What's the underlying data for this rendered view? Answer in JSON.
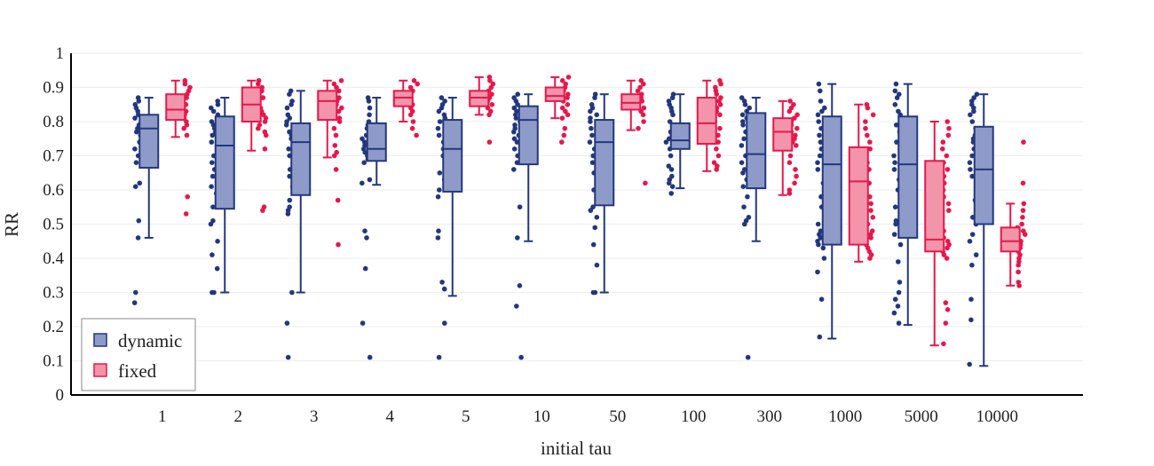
{
  "chart_data": {
    "type": "box",
    "title": "",
    "xlabel": "initial tau",
    "ylabel": "RR",
    "ylim": [
      0,
      1
    ],
    "yticks": [
      "0",
      "0.1",
      "0.2",
      "0.3",
      "0.4",
      "0.5",
      "0.6",
      "0.7",
      "0.8",
      "0.9",
      "1"
    ],
    "categories": [
      "1",
      "2",
      "3",
      "4",
      "5",
      "10",
      "50",
      "100",
      "300",
      "1000",
      "5000",
      "10000"
    ],
    "legend_position": "bottom-left",
    "series": [
      {
        "name": "dynamic",
        "color": "#23377f",
        "fill": "#8e9bc8",
        "boxes": [
          {
            "min": 0.46,
            "q1": 0.665,
            "median": 0.78,
            "q3": 0.82,
            "max": 0.87
          },
          {
            "min": 0.3,
            "q1": 0.545,
            "median": 0.73,
            "q3": 0.815,
            "max": 0.87
          },
          {
            "min": 0.3,
            "q1": 0.585,
            "median": 0.74,
            "q3": 0.795,
            "max": 0.89
          },
          {
            "min": 0.615,
            "q1": 0.685,
            "median": 0.72,
            "q3": 0.795,
            "max": 0.87
          },
          {
            "min": 0.29,
            "q1": 0.595,
            "median": 0.72,
            "q3": 0.805,
            "max": 0.87
          },
          {
            "min": 0.45,
            "q1": 0.675,
            "median": 0.805,
            "q3": 0.845,
            "max": 0.88
          },
          {
            "min": 0.3,
            "q1": 0.555,
            "median": 0.74,
            "q3": 0.805,
            "max": 0.88
          },
          {
            "min": 0.605,
            "q1": 0.72,
            "median": 0.745,
            "q3": 0.795,
            "max": 0.88
          },
          {
            "min": 0.45,
            "q1": 0.605,
            "median": 0.705,
            "q3": 0.825,
            "max": 0.87
          },
          {
            "min": 0.165,
            "q1": 0.44,
            "median": 0.675,
            "q3": 0.815,
            "max": 0.91
          },
          {
            "min": 0.205,
            "q1": 0.46,
            "median": 0.675,
            "q3": 0.815,
            "max": 0.91
          },
          {
            "min": 0.085,
            "q1": 0.5,
            "median": 0.66,
            "q3": 0.785,
            "max": 0.88
          }
        ],
        "points": [
          [
            0.87,
            0.86,
            0.85,
            0.84,
            0.83,
            0.82,
            0.81,
            0.8,
            0.79,
            0.78,
            0.77,
            0.76,
            0.74,
            0.72,
            0.7,
            0.68,
            0.62,
            0.61,
            0.51,
            0.46,
            0.3,
            0.27
          ],
          [
            0.86,
            0.85,
            0.84,
            0.83,
            0.82,
            0.8,
            0.79,
            0.78,
            0.77,
            0.76,
            0.74,
            0.72,
            0.7,
            0.68,
            0.66,
            0.64,
            0.61,
            0.59,
            0.55,
            0.51,
            0.5,
            0.45,
            0.41,
            0.37,
            0.3,
            0.3
          ],
          [
            0.89,
            0.88,
            0.86,
            0.85,
            0.84,
            0.82,
            0.81,
            0.8,
            0.79,
            0.77,
            0.76,
            0.75,
            0.74,
            0.72,
            0.7,
            0.66,
            0.64,
            0.61,
            0.57,
            0.55,
            0.54,
            0.53,
            0.3,
            0.21,
            0.11
          ],
          [
            0.87,
            0.86,
            0.84,
            0.82,
            0.8,
            0.79,
            0.78,
            0.76,
            0.75,
            0.74,
            0.73,
            0.72,
            0.71,
            0.7,
            0.69,
            0.68,
            0.63,
            0.62,
            0.48,
            0.46,
            0.37,
            0.21,
            0.11
          ],
          [
            0.87,
            0.86,
            0.85,
            0.84,
            0.83,
            0.82,
            0.81,
            0.8,
            0.78,
            0.76,
            0.74,
            0.72,
            0.7,
            0.68,
            0.65,
            0.63,
            0.6,
            0.58,
            0.48,
            0.46,
            0.33,
            0.31,
            0.21,
            0.11
          ],
          [
            0.88,
            0.87,
            0.86,
            0.85,
            0.84,
            0.83,
            0.82,
            0.81,
            0.8,
            0.79,
            0.78,
            0.77,
            0.76,
            0.75,
            0.74,
            0.72,
            0.7,
            0.68,
            0.66,
            0.55,
            0.46,
            0.32,
            0.26,
            0.11
          ],
          [
            0.88,
            0.87,
            0.85,
            0.84,
            0.83,
            0.82,
            0.81,
            0.8,
            0.78,
            0.76,
            0.74,
            0.72,
            0.7,
            0.68,
            0.65,
            0.63,
            0.6,
            0.55,
            0.54,
            0.52,
            0.49,
            0.44,
            0.38,
            0.3,
            0.3
          ],
          [
            0.88,
            0.87,
            0.86,
            0.85,
            0.84,
            0.83,
            0.82,
            0.8,
            0.78,
            0.77,
            0.76,
            0.75,
            0.74,
            0.73,
            0.72,
            0.7,
            0.67,
            0.66,
            0.64,
            0.63,
            0.62,
            0.61,
            0.59
          ],
          [
            0.87,
            0.86,
            0.85,
            0.84,
            0.83,
            0.82,
            0.81,
            0.8,
            0.79,
            0.77,
            0.75,
            0.73,
            0.72,
            0.7,
            0.68,
            0.66,
            0.65,
            0.63,
            0.61,
            0.58,
            0.55,
            0.52,
            0.51,
            0.5,
            0.11
          ],
          [
            0.91,
            0.89,
            0.86,
            0.84,
            0.83,
            0.82,
            0.8,
            0.78,
            0.76,
            0.74,
            0.72,
            0.7,
            0.68,
            0.66,
            0.62,
            0.58,
            0.55,
            0.52,
            0.5,
            0.48,
            0.47,
            0.46,
            0.45,
            0.44,
            0.43,
            0.4,
            0.36,
            0.28,
            0.17
          ],
          [
            0.91,
            0.89,
            0.88,
            0.87,
            0.85,
            0.83,
            0.82,
            0.8,
            0.79,
            0.78,
            0.77,
            0.74,
            0.7,
            0.68,
            0.66,
            0.63,
            0.6,
            0.57,
            0.55,
            0.51,
            0.5,
            0.47,
            0.44,
            0.39,
            0.33,
            0.3,
            0.28,
            0.26,
            0.24,
            0.21
          ],
          [
            0.88,
            0.87,
            0.86,
            0.85,
            0.84,
            0.83,
            0.82,
            0.8,
            0.78,
            0.76,
            0.75,
            0.74,
            0.72,
            0.7,
            0.68,
            0.66,
            0.64,
            0.6,
            0.57,
            0.55,
            0.52,
            0.5,
            0.47,
            0.45,
            0.41,
            0.38,
            0.28,
            0.22,
            0.09
          ]
        ]
      },
      {
        "name": "fixed",
        "color": "#e8174b",
        "fill": "#f295ab",
        "boxes": [
          {
            "min": 0.755,
            "q1": 0.805,
            "median": 0.835,
            "q3": 0.88,
            "max": 0.92
          },
          {
            "min": 0.715,
            "q1": 0.8,
            "median": 0.85,
            "q3": 0.9,
            "max": 0.92
          },
          {
            "min": 0.695,
            "q1": 0.805,
            "median": 0.86,
            "q3": 0.89,
            "max": 0.92
          },
          {
            "min": 0.8,
            "q1": 0.845,
            "median": 0.87,
            "q3": 0.89,
            "max": 0.92
          },
          {
            "min": 0.82,
            "q1": 0.845,
            "median": 0.87,
            "q3": 0.89,
            "max": 0.93
          },
          {
            "min": 0.81,
            "q1": 0.86,
            "median": 0.875,
            "q3": 0.9,
            "max": 0.93
          },
          {
            "min": 0.775,
            "q1": 0.835,
            "median": 0.855,
            "q3": 0.88,
            "max": 0.92
          },
          {
            "min": 0.655,
            "q1": 0.735,
            "median": 0.795,
            "q3": 0.87,
            "max": 0.92
          },
          {
            "min": 0.585,
            "q1": 0.715,
            "median": 0.77,
            "q3": 0.81,
            "max": 0.86
          },
          {
            "min": 0.39,
            "q1": 0.44,
            "median": 0.625,
            "q3": 0.725,
            "max": 0.85
          },
          {
            "min": 0.145,
            "q1": 0.42,
            "median": 0.455,
            "q3": 0.685,
            "max": 0.8
          },
          {
            "min": 0.32,
            "q1": 0.42,
            "median": 0.45,
            "q3": 0.49,
            "max": 0.56
          }
        ],
        "points": [
          [
            0.92,
            0.91,
            0.9,
            0.89,
            0.88,
            0.87,
            0.86,
            0.85,
            0.84,
            0.83,
            0.82,
            0.81,
            0.8,
            0.79,
            0.78,
            0.76,
            0.58,
            0.53
          ],
          [
            0.92,
            0.91,
            0.9,
            0.89,
            0.88,
            0.87,
            0.86,
            0.85,
            0.84,
            0.83,
            0.82,
            0.81,
            0.8,
            0.79,
            0.78,
            0.77,
            0.76,
            0.72,
            0.55,
            0.54
          ],
          [
            0.92,
            0.91,
            0.9,
            0.89,
            0.88,
            0.87,
            0.86,
            0.85,
            0.84,
            0.83,
            0.82,
            0.81,
            0.8,
            0.78,
            0.76,
            0.73,
            0.71,
            0.7,
            0.66,
            0.57,
            0.44
          ],
          [
            0.92,
            0.91,
            0.9,
            0.89,
            0.88,
            0.87,
            0.86,
            0.85,
            0.84,
            0.83,
            0.82,
            0.8,
            0.78,
            0.76
          ],
          [
            0.93,
            0.92,
            0.91,
            0.9,
            0.89,
            0.88,
            0.87,
            0.86,
            0.85,
            0.84,
            0.83,
            0.82,
            0.74
          ],
          [
            0.93,
            0.92,
            0.91,
            0.9,
            0.89,
            0.88,
            0.87,
            0.86,
            0.85,
            0.84,
            0.83,
            0.82,
            0.81,
            0.78,
            0.76,
            0.74
          ],
          [
            0.92,
            0.91,
            0.9,
            0.89,
            0.88,
            0.87,
            0.86,
            0.85,
            0.84,
            0.83,
            0.82,
            0.8,
            0.78,
            0.62
          ],
          [
            0.92,
            0.91,
            0.9,
            0.89,
            0.88,
            0.87,
            0.86,
            0.85,
            0.84,
            0.83,
            0.82,
            0.8,
            0.78,
            0.76,
            0.74,
            0.72,
            0.7,
            0.68,
            0.67,
            0.66
          ],
          [
            0.86,
            0.85,
            0.84,
            0.83,
            0.82,
            0.81,
            0.8,
            0.79,
            0.78,
            0.77,
            0.76,
            0.75,
            0.74,
            0.73,
            0.72,
            0.7,
            0.68,
            0.66,
            0.64,
            0.62,
            0.6,
            0.59
          ],
          [
            0.85,
            0.84,
            0.82,
            0.8,
            0.78,
            0.76,
            0.74,
            0.72,
            0.7,
            0.68,
            0.66,
            0.64,
            0.62,
            0.6,
            0.58,
            0.56,
            0.54,
            0.52,
            0.5,
            0.48,
            0.47,
            0.46,
            0.45,
            0.44,
            0.43,
            0.42,
            0.41,
            0.4
          ],
          [
            0.8,
            0.78,
            0.76,
            0.74,
            0.72,
            0.7,
            0.68,
            0.66,
            0.64,
            0.62,
            0.6,
            0.58,
            0.56,
            0.54,
            0.5,
            0.48,
            0.46,
            0.45,
            0.44,
            0.43,
            0.42,
            0.41,
            0.4,
            0.27,
            0.25,
            0.21,
            0.15
          ],
          [
            0.74,
            0.62,
            0.56,
            0.54,
            0.52,
            0.5,
            0.49,
            0.48,
            0.47,
            0.46,
            0.45,
            0.44,
            0.43,
            0.42,
            0.41,
            0.4,
            0.39,
            0.38,
            0.36,
            0.33,
            0.32
          ]
        ]
      }
    ]
  }
}
